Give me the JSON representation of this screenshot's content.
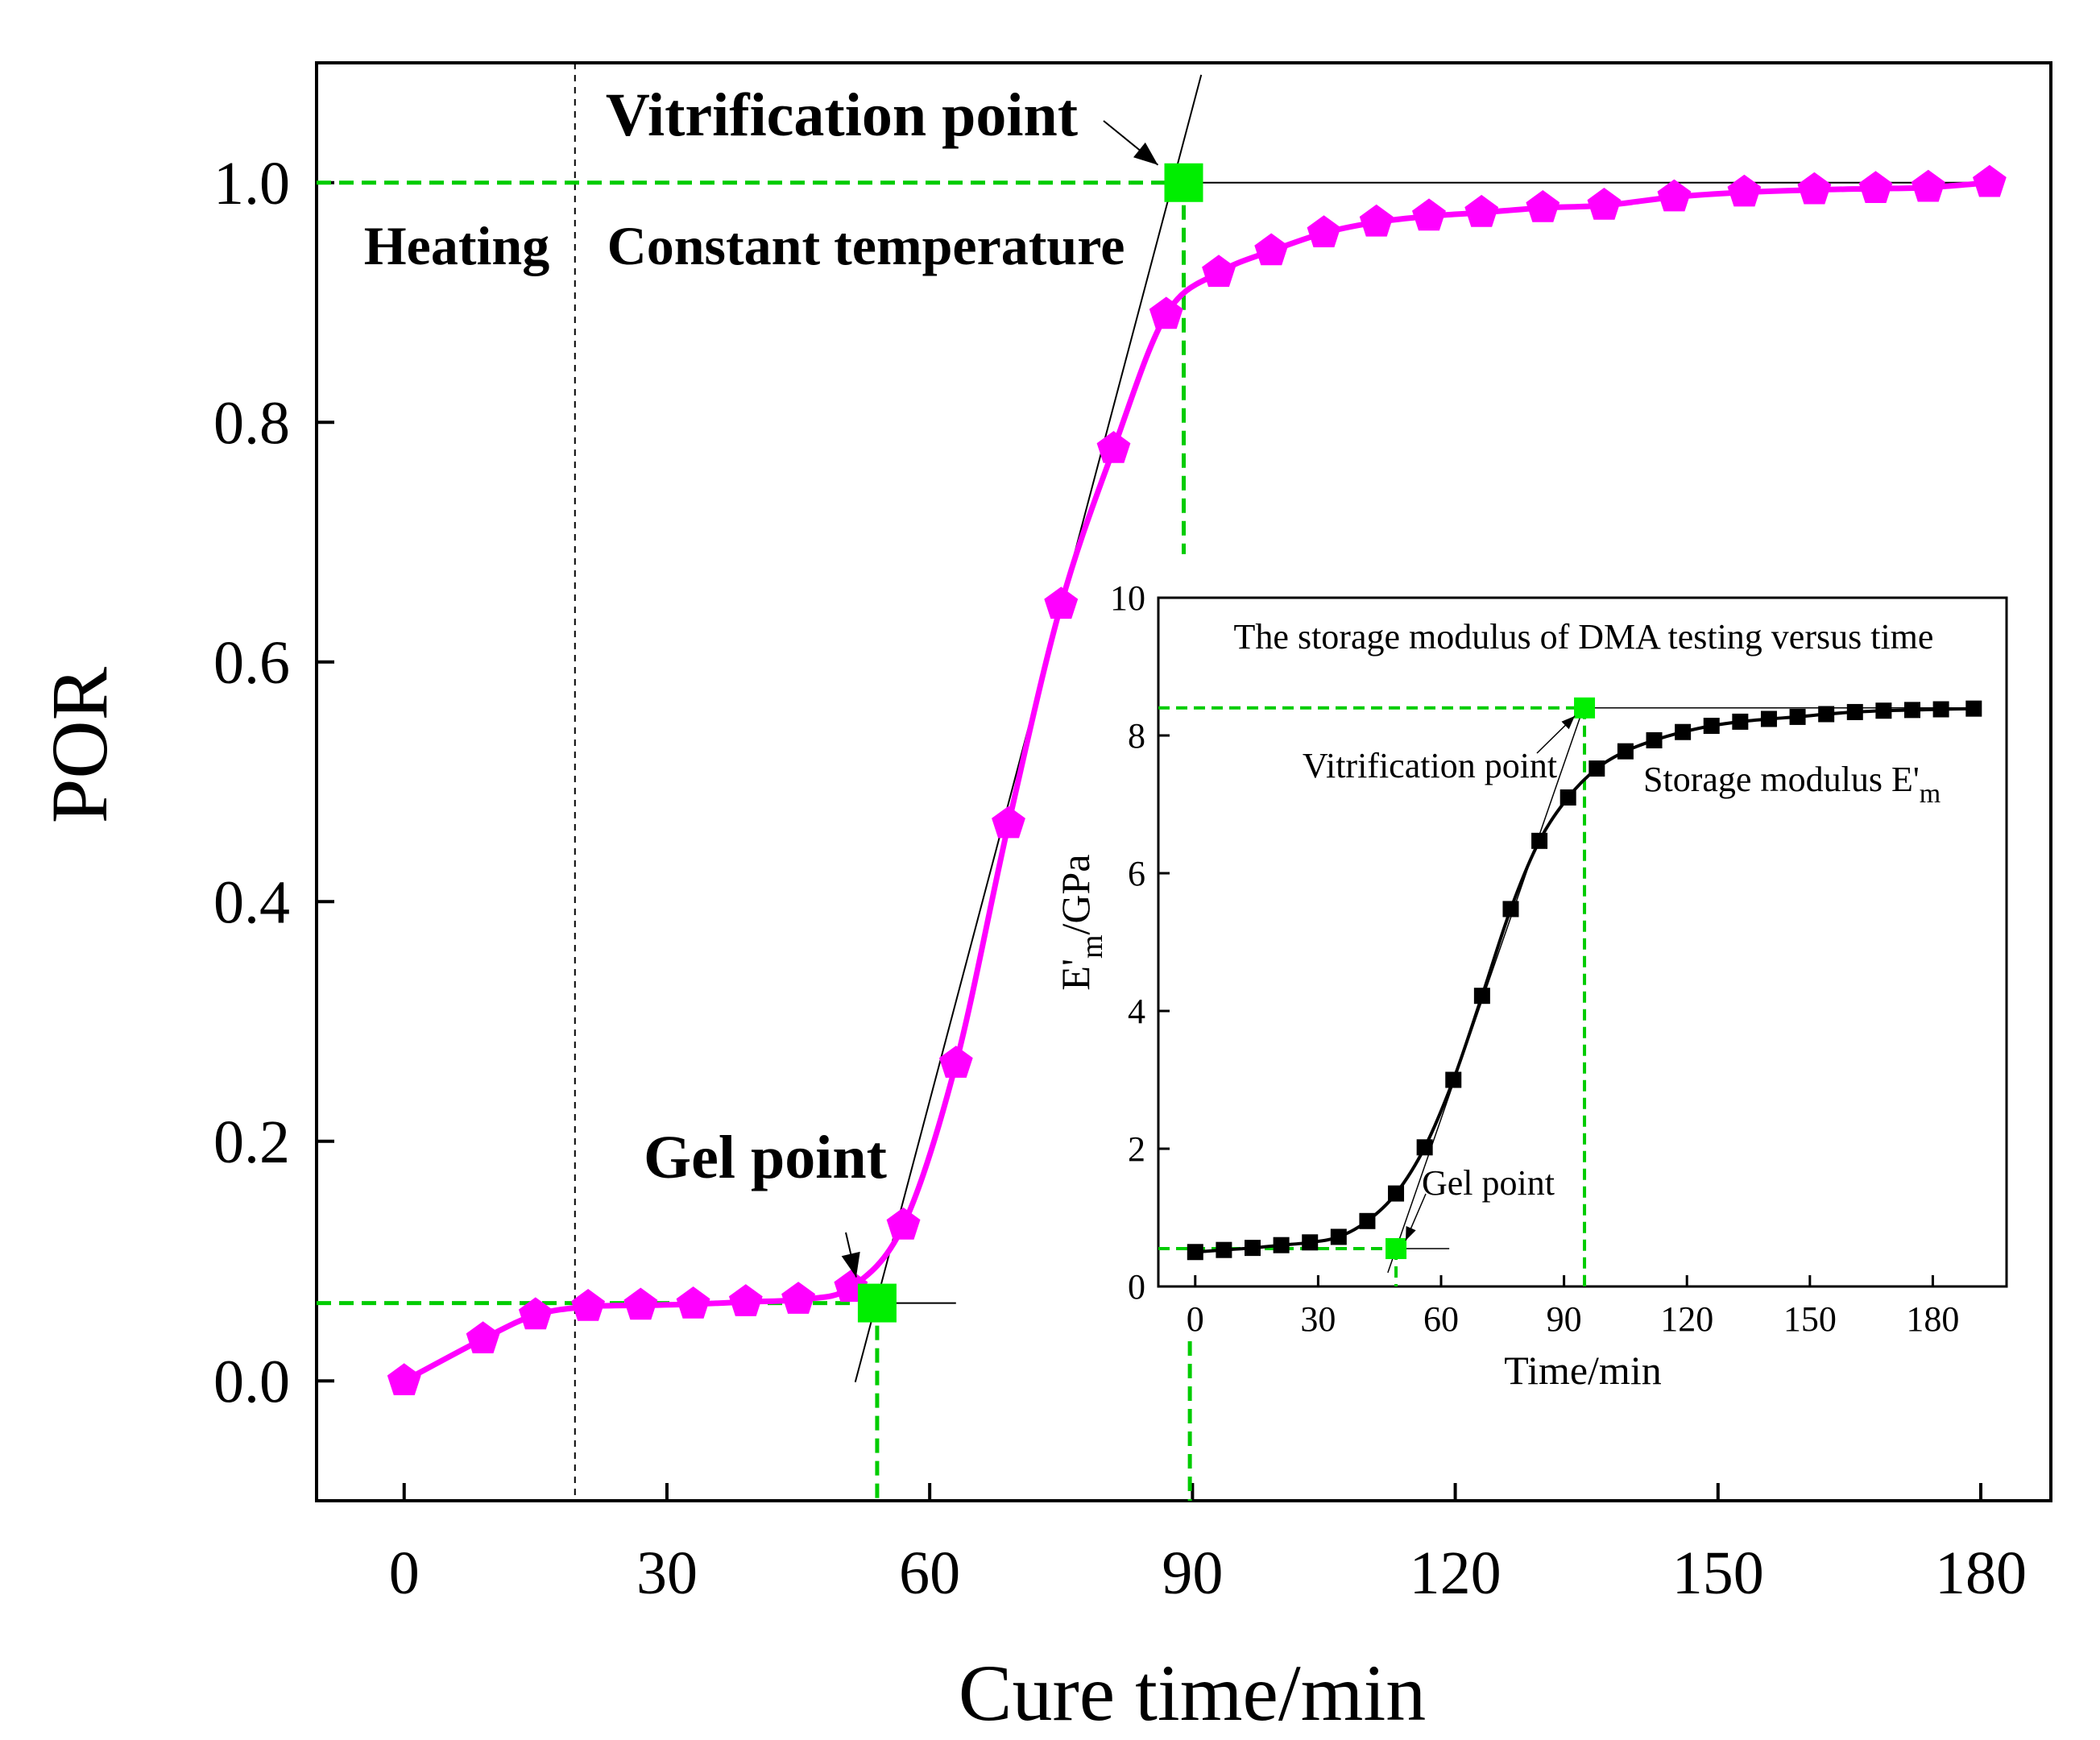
{
  "chart_data": [
    {
      "type": "line",
      "xlabel": "Cure time/min",
      "ylabel": "POR",
      "xlim": [
        -10,
        188
      ],
      "ylim": [
        -0.1,
        1.1
      ],
      "xticks": [
        "0",
        "30",
        "60",
        "90",
        "120",
        "150",
        "180"
      ],
      "yticks": [
        "0.0",
        "0.2",
        "0.4",
        "0.6",
        "0.8",
        "1.0"
      ],
      "series": [
        {
          "name": "POR",
          "color": "#ff00ff",
          "marker": "pentagon",
          "x": [
            0,
            9,
            15,
            21,
            27,
            33,
            39,
            45,
            51,
            57,
            63,
            69,
            75,
            81,
            87,
            93,
            99,
            105,
            111,
            117,
            123,
            130,
            137,
            145,
            153,
            161,
            168,
            174,
            181
          ],
          "y": [
            0.0,
            0.035,
            0.055,
            0.062,
            0.063,
            0.064,
            0.066,
            0.068,
            0.078,
            0.13,
            0.265,
            0.465,
            0.648,
            0.778,
            0.89,
            0.925,
            0.943,
            0.958,
            0.967,
            0.972,
            0.975,
            0.979,
            0.981,
            0.988,
            0.992,
            0.994,
            0.995,
            0.996,
            1.0
          ]
        }
      ],
      "gel_point": {
        "label": "Gel point",
        "x": 54,
        "y": 0.065
      },
      "vitrification_point": {
        "label": "Vitrification point",
        "x": 89,
        "y": 1.0
      },
      "phase_divider_x": 19.5,
      "phase_labels": [
        "Heating",
        "Constant temperature"
      ],
      "tangent_lines": [
        {
          "x": [
            51.5,
            91
          ],
          "y": [
            -0.001,
            1.09
          ]
        }
      ],
      "baselines": [
        {
          "x": [
            54,
            63
          ],
          "y": [
            0.065,
            0.065
          ]
        },
        {
          "x": [
            89,
            181
          ],
          "y": [
            1.0,
            1.0
          ]
        }
      ],
      "guide_color": "#00cc00",
      "line_color": "#ff00ff",
      "marker_color": "#00ee00"
    },
    {
      "type": "line",
      "title": "The storage modulus of DMA testing versus time",
      "xlabel": "Time/min",
      "ylabel_main": "E'",
      "ylabel_sub": "m",
      "ylabel_unit": "/GPa",
      "xlim": [
        -9,
        198
      ],
      "ylim": [
        0,
        10
      ],
      "xticks": [
        "0",
        "30",
        "60",
        "90",
        "120",
        "150",
        "180"
      ],
      "yticks": [
        "0",
        "2",
        "4",
        "6",
        "8",
        "10"
      ],
      "series": [
        {
          "name": "Storage modulus E'm",
          "label_main": "Storage modulus E'",
          "label_sub": "m",
          "color": "#000000",
          "marker": "square",
          "x": [
            0,
            7,
            14,
            21,
            28,
            35,
            42,
            49,
            56,
            63,
            70,
            77,
            84,
            91,
            98,
            105,
            112,
            119,
            126,
            133,
            140,
            147,
            154,
            161,
            168,
            175,
            182,
            190
          ],
          "y": [
            0.5,
            0.53,
            0.56,
            0.6,
            0.64,
            0.72,
            0.95,
            1.35,
            2.02,
            3.0,
            4.22,
            5.48,
            6.47,
            7.1,
            7.52,
            7.77,
            7.93,
            8.05,
            8.14,
            8.2,
            8.24,
            8.27,
            8.31,
            8.34,
            8.36,
            8.37,
            8.38,
            8.39
          ]
        }
      ],
      "gel_point": {
        "label": "Gel point",
        "x": 49,
        "y": 0.55
      },
      "vitrification_point": {
        "label": "Vitrification point",
        "x": 95,
        "y": 8.4
      }
    }
  ]
}
